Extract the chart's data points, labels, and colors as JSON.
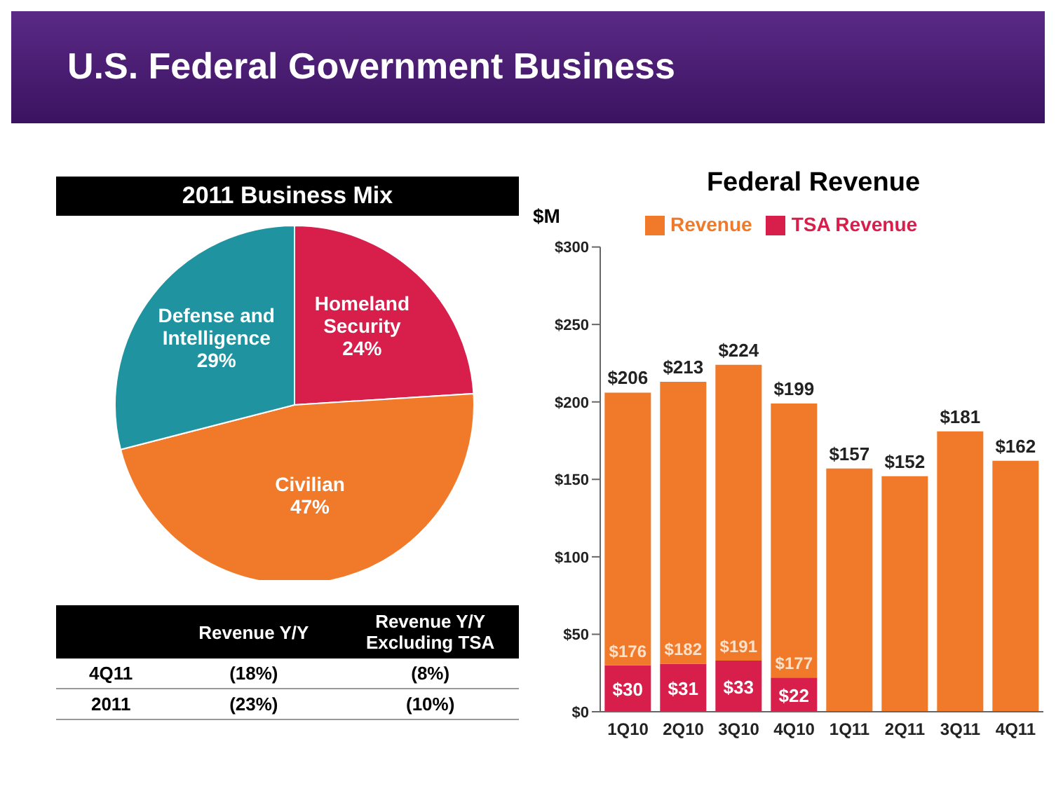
{
  "chart_data": [
    {
      "type": "pie",
      "title": "U.S. Federal Government Business",
      "subtitle": "2011 Business Mix",
      "categories": [
        "Homeland Security",
        "Civilian",
        "Defense and Intelligence"
      ],
      "values": [
        24,
        47,
        29
      ],
      "value_labels": [
        "24%",
        "47%",
        "29%"
      ],
      "colors": [
        "#d81e4a",
        "#f07a2a",
        "#1f94a0"
      ],
      "legend": false
    },
    {
      "type": "other",
      "categories": [
        "Revenue Y/Y",
        "Revenue Y/Y Excluding TSA"
      ],
      "y_categories": [
        "4Q11",
        "2011"
      ],
      "annotations": [
        "(18%)",
        "(8%)",
        "(23%)",
        "(10%)"
      ]
    },
    {
      "type": "bar",
      "title": "Federal Revenue",
      "ylabel": "$M",
      "stacked": true,
      "legend": "top",
      "grid": false,
      "categories": [
        "1Q10",
        "2Q10",
        "3Q10",
        "4Q10",
        "1Q11",
        "2Q11",
        "3Q11",
        "4Q11"
      ],
      "series": [
        {
          "name": "TSA Revenue",
          "color": "#d81e4a",
          "values": [
            30,
            31,
            33,
            22,
            null,
            null,
            null,
            null
          ],
          "value_labels": [
            "$30",
            "$31",
            "$33",
            "$22",
            null,
            null,
            null,
            null
          ]
        },
        {
          "name": "Revenue",
          "color": "#f07a2a",
          "values": [
            176,
            182,
            191,
            177,
            157,
            152,
            181,
            162
          ],
          "value_labels": [
            "$176",
            "$182",
            "$191",
            "$177",
            "$157",
            "$152",
            "$181",
            "$162"
          ]
        }
      ],
      "totals": [
        "$206",
        "$213",
        "$224",
        "$199",
        null,
        null,
        null,
        null
      ],
      "ylim": [
        0,
        300
      ],
      "yticks": [
        {
          "value": 0,
          "label": "$0"
        },
        {
          "value": 50,
          "label": "$50"
        },
        {
          "value": 100,
          "label": "$100"
        },
        {
          "value": 150,
          "label": "$150"
        },
        {
          "value": 200,
          "label": "$200"
        },
        {
          "value": 250,
          "label": "$250"
        },
        {
          "value": 300,
          "label": "$300"
        }
      ]
    }
  ]
}
